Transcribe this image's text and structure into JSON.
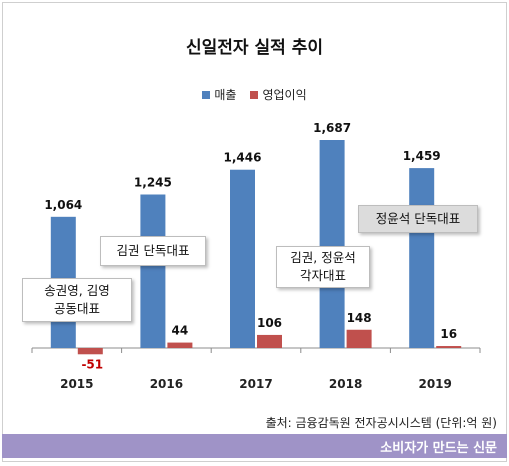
{
  "title": "신일전자 실적 추이",
  "legend": {
    "revenue_label": "매출",
    "profit_label": "영업이익",
    "revenue_color": "#4f81bd",
    "profit_color": "#c0504d"
  },
  "callouts": {
    "c2015": "송권영, 김영\n공동대표",
    "c2016": "김권 단독대표",
    "c2018": "김권, 정윤석\n각자대표",
    "c2019": "정윤석 단독대표"
  },
  "source": "출처: 금융감독원 전자공시시스템 (단위:억 원)",
  "footer": "소비자가 만드는 신문",
  "chart_data": {
    "type": "bar",
    "categories": [
      "2015",
      "2016",
      "2017",
      "2018",
      "2019"
    ],
    "series": [
      {
        "name": "매출",
        "values": [
          1064,
          1245,
          1446,
          1687,
          1459
        ],
        "labels": [
          "1,064",
          "1,245",
          "1,446",
          "1,687",
          "1,459"
        ],
        "color": "#4f81bd"
      },
      {
        "name": "영업이익",
        "values": [
          -51,
          44,
          106,
          148,
          16
        ],
        "labels": [
          "-51",
          "44",
          "106",
          "148",
          "16"
        ],
        "color": "#c0504d"
      }
    ],
    "title": "신일전자 실적 추이",
    "ylim": [
      -150,
      1800
    ],
    "grid": false,
    "legend": "top-center"
  }
}
